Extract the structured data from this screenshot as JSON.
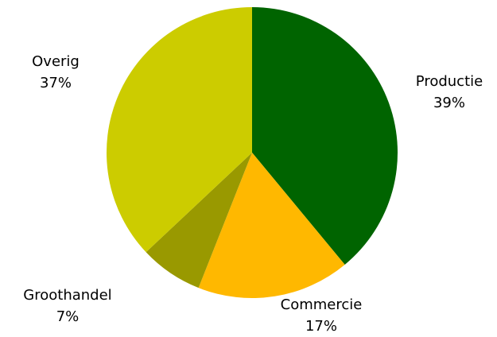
{
  "chart_data": {
    "type": "pie",
    "categories": [
      "Productie",
      "Commercie",
      "Groothandel",
      "Overig"
    ],
    "values": [
      39,
      17,
      7,
      37
    ],
    "value_labels": [
      "39%",
      "17%",
      "7%",
      "37%"
    ],
    "colors": [
      "#006400",
      "#ffb800",
      "#999900",
      "#cccc00"
    ]
  }
}
